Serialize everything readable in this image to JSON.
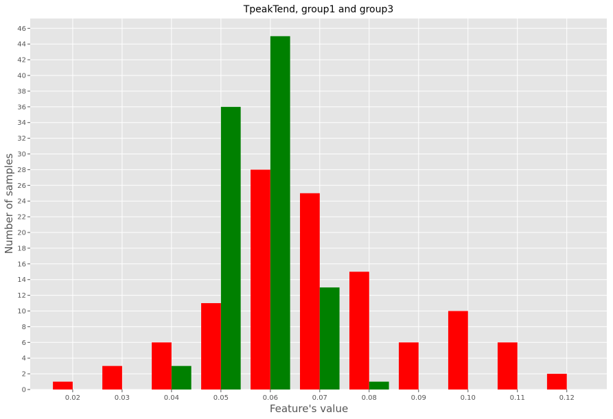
{
  "chart_data": {
    "type": "bar",
    "title": "TpeakTend, group1 and group3",
    "xlabel": "Feature's value",
    "ylabel": "Number of samples",
    "x_ticks": [
      "0.02",
      "0.03",
      "0.04",
      "0.05",
      "0.06",
      "0.07",
      "0.08",
      "0.09",
      "0.10",
      "0.11",
      "0.12"
    ],
    "y_ticks": [
      0,
      2,
      4,
      6,
      8,
      10,
      12,
      14,
      16,
      18,
      20,
      22,
      24,
      26,
      28,
      30,
      32,
      34,
      36,
      38,
      40,
      42,
      44,
      46
    ],
    "xlim": [
      0.0114,
      0.1281
    ],
    "ylim": [
      0,
      47.25
    ],
    "grid": true,
    "bar_width": 0.004,
    "series": [
      {
        "color": "#ff0000",
        "points": [
          {
            "x": 0.018,
            "y": 1
          },
          {
            "x": 0.028,
            "y": 3
          },
          {
            "x": 0.038,
            "y": 6
          },
          {
            "x": 0.048,
            "y": 11
          },
          {
            "x": 0.058,
            "y": 28
          },
          {
            "x": 0.068,
            "y": 25
          },
          {
            "x": 0.078,
            "y": 15
          },
          {
            "x": 0.088,
            "y": 6
          },
          {
            "x": 0.098,
            "y": 10
          },
          {
            "x": 0.108,
            "y": 6
          },
          {
            "x": 0.118,
            "y": 2
          }
        ]
      },
      {
        "color": "#008000",
        "points": [
          {
            "x": 0.042,
            "y": 3
          },
          {
            "x": 0.052,
            "y": 36
          },
          {
            "x": 0.062,
            "y": 45
          },
          {
            "x": 0.072,
            "y": 13
          },
          {
            "x": 0.082,
            "y": 1
          }
        ]
      }
    ]
  }
}
